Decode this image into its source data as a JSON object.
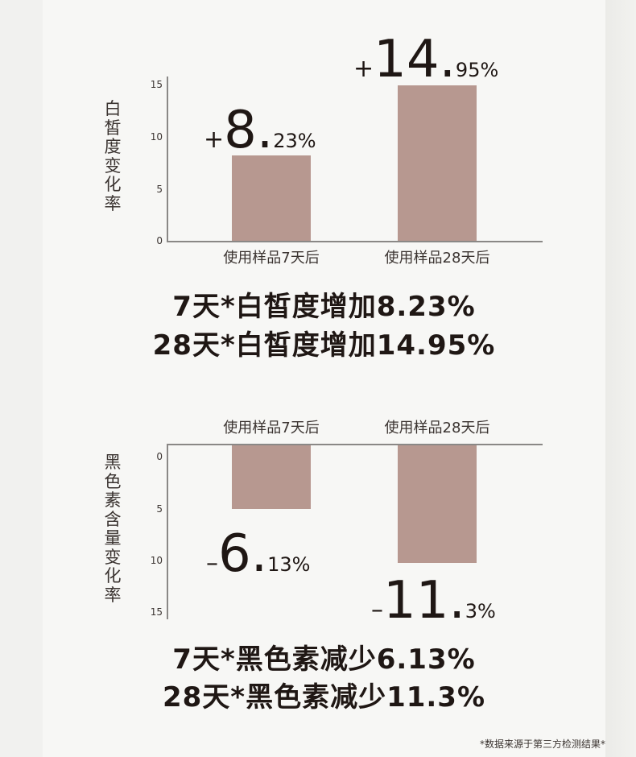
{
  "colors": {
    "bar": "#b79890",
    "text": "#1f1714",
    "axis": "#8a8886"
  },
  "chart_data": [
    {
      "type": "bar",
      "ylabel": "白皙度变化率",
      "categories": [
        "使用样品7天后",
        "使用样品28天后"
      ],
      "values": [
        8.23,
        14.95
      ],
      "ylim": [
        0,
        15
      ],
      "yticks": [
        "0",
        "5",
        "10",
        "15"
      ],
      "data_labels": [
        {
          "sign": "+",
          "big": "8",
          "small": "23%"
        },
        {
          "sign": "+",
          "big": "14",
          "small": "95%"
        }
      ]
    },
    {
      "type": "bar",
      "ylabel": "黑色素含量变化率",
      "categories": [
        "使用样品7天后",
        "使用样品28天后"
      ],
      "values": [
        -6.13,
        -11.3
      ],
      "ylim": [
        -15,
        0
      ],
      "yticks": [
        "0",
        "5",
        "10",
        "15"
      ],
      "data_labels": [
        {
          "sign": "–",
          "big": "6",
          "small": "13%"
        },
        {
          "sign": "–",
          "big": "11",
          "small": "3%"
        }
      ]
    }
  ],
  "headlines": {
    "line1": "7天*白皙度增加8.23%",
    "line2": "28天*白皙度增加14.95%",
    "line3": "7天*黑色素减少6.13%",
    "line4": "28天*黑色素减少11.3%"
  },
  "footnote": "*数据来源于第三方检测结果*"
}
